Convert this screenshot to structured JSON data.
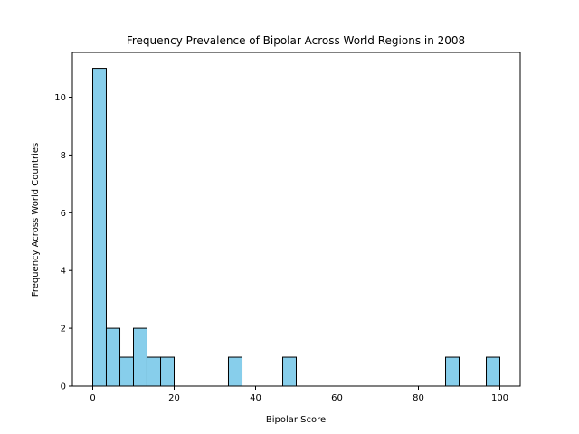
{
  "chart_data": {
    "type": "bar",
    "title": "Frequency Prevalence of Bipolar Across World Regions in 2008",
    "xlabel": "Bipolar Score",
    "ylabel": "Frequency Across World Countries",
    "xlim": [
      -5,
      105
    ],
    "ylim": [
      0,
      11.55
    ],
    "x_ticks": [
      0,
      20,
      40,
      60,
      80,
      100
    ],
    "y_ticks": [
      0,
      2,
      4,
      6,
      8,
      10
    ],
    "grid": false,
    "legend": "none",
    "bar_color": "#87ceeb",
    "edge_color": "#000000",
    "bins": [
      {
        "start": 0,
        "end": 3.33,
        "count": 11
      },
      {
        "start": 3.33,
        "end": 6.67,
        "count": 2
      },
      {
        "start": 6.67,
        "end": 10,
        "count": 1
      },
      {
        "start": 10,
        "end": 13.33,
        "count": 2
      },
      {
        "start": 13.33,
        "end": 16.67,
        "count": 1
      },
      {
        "start": 16.67,
        "end": 20,
        "count": 1
      },
      {
        "start": 33.33,
        "end": 36.67,
        "count": 1
      },
      {
        "start": 46.67,
        "end": 50,
        "count": 1
      },
      {
        "start": 86.67,
        "end": 90,
        "count": 1
      },
      {
        "start": 96.67,
        "end": 100,
        "count": 1
      }
    ]
  }
}
